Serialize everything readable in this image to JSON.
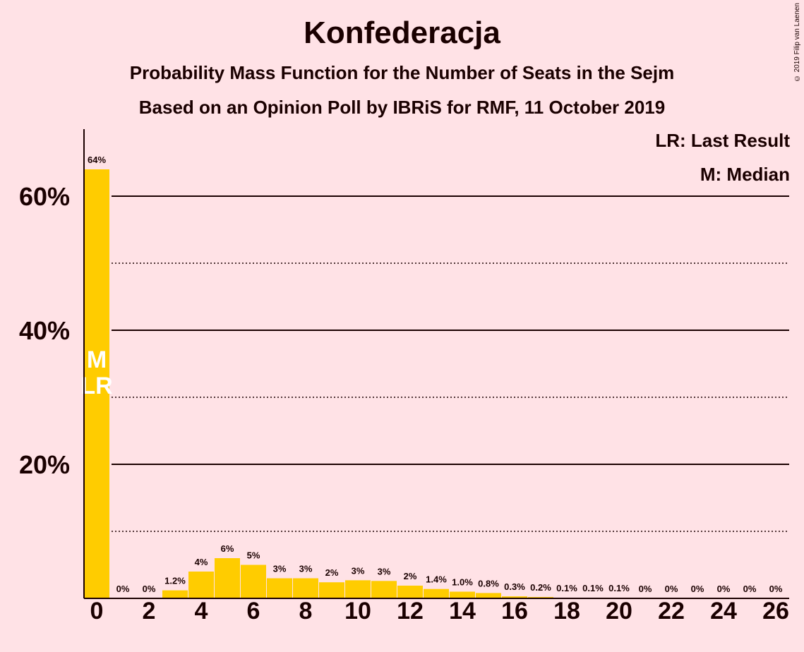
{
  "title": "Konfederacja",
  "subtitle_1": "Probability Mass Function for the Number of Seats in the Sejm",
  "subtitle_2": "Based on an Opinion Poll by IBRiS for RMF, 11 October 2019",
  "legend": {
    "last_result": "LR: Last Result",
    "median": "M: Median"
  },
  "copyright": "© 2019 Filip van Laenen",
  "colors": {
    "background": "#FFE2E6",
    "bar": "#FFCC00",
    "text": "#1a0000"
  },
  "chart_data": {
    "type": "bar",
    "title": "Konfederacja",
    "categories": [
      0,
      1,
      2,
      3,
      4,
      5,
      6,
      7,
      8,
      9,
      10,
      11,
      12,
      13,
      14,
      15,
      16,
      17,
      18,
      19,
      20,
      21,
      22,
      23,
      24,
      25,
      26
    ],
    "values": [
      64,
      0,
      0,
      1.2,
      4,
      6,
      5,
      3,
      3,
      2.4,
      2.7,
      2.6,
      1.9,
      1.4,
      1.0,
      0.8,
      0.3,
      0.2,
      0.1,
      0.1,
      0.1,
      0,
      0,
      0,
      0,
      0,
      0
    ],
    "value_labels": [
      "64%",
      "0%",
      "0%",
      "1.2%",
      "4%",
      "6%",
      "5%",
      "3%",
      "3%",
      "2%",
      "3%",
      "3%",
      "2%",
      "1.4%",
      "1.0%",
      "0.8%",
      "0.3%",
      "0.2%",
      "0.1%",
      "0.1%",
      "0.1%",
      "0%",
      "0%",
      "0%",
      "0%",
      "0%",
      "0%"
    ],
    "x_tick_labels": [
      "0",
      "2",
      "4",
      "6",
      "8",
      "10",
      "12",
      "14",
      "16",
      "18",
      "20",
      "22",
      "24",
      "26"
    ],
    "x_ticks": [
      0,
      2,
      4,
      6,
      8,
      10,
      12,
      14,
      16,
      18,
      20,
      22,
      24,
      26
    ],
    "y_ticks": [
      20,
      40,
      60
    ],
    "y_tick_labels": [
      "20%",
      "40%",
      "60%"
    ],
    "y_minor_ticks": [
      10,
      30,
      50
    ],
    "ylim": [
      0,
      70
    ],
    "median_marker": {
      "seat": 0,
      "label": "M"
    },
    "last_result_marker": {
      "seat": 0,
      "label": "LR"
    },
    "grid": true
  }
}
